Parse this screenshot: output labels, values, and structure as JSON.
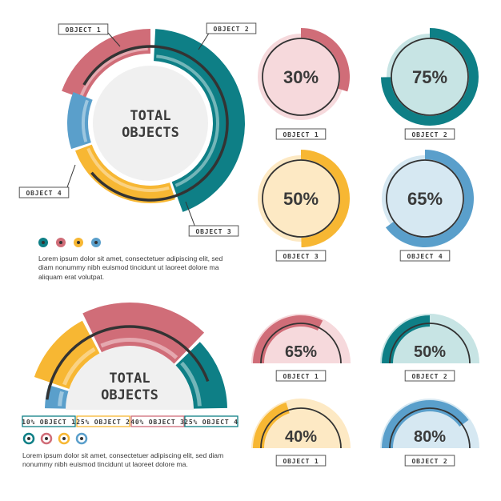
{
  "colors": {
    "teal": "#0e7f86",
    "teal_light": "#c7e4e4",
    "red": "#d06d78",
    "red_light": "#f6d9dc",
    "yellow": "#f7b733",
    "yellow_light": "#fde9c4",
    "blue": "#5a9fcb",
    "blue_light": "#d6e8f2",
    "dark": "#333333",
    "center": "#f0f0f0"
  },
  "paragraph_text": "Lorem ipsum dolor sit amet, consectetuer adipiscing elit, sed diam nonummy nibh euismod tincidunt ut laoreet dolore ma aliquam erat volutpat.",
  "paragraph_text_2": "Lorem ipsum dolor sit amet, consectetuer adipiscing elit, sed diam nonummy nibh euismod tincidunt ut laoreet dolore ma.",
  "chart_data": [
    {
      "type": "pie",
      "center_title": [
        "TOTAL",
        "OBJECTS"
      ],
      "categories": [
        "OBJECT 1",
        "OBJECT 2",
        "OBJECT 3",
        "OBJECT 4"
      ],
      "colors": [
        "red",
        "teal",
        "yellow",
        "blue"
      ],
      "legend_dots": [
        "teal",
        "red",
        "yellow",
        "blue"
      ]
    },
    {
      "type": "pie",
      "label": "OBJECT 1",
      "value": 30,
      "display": "30%",
      "color": "red"
    },
    {
      "type": "pie",
      "label": "OBJECT 2",
      "value": 75,
      "display": "75%",
      "color": "teal"
    },
    {
      "type": "pie",
      "label": "OBJECT 3",
      "value": 50,
      "display": "50%",
      "color": "yellow"
    },
    {
      "type": "pie",
      "label": "OBJECT 4",
      "value": 65,
      "display": "65%",
      "color": "blue"
    },
    {
      "type": "pie",
      "center_title": [
        "TOTAL",
        "OBJECTS"
      ],
      "categories": [
        "OBJECT 1",
        "OBJECT 2",
        "OBJECT 3",
        "OBJECT 4"
      ],
      "values": [
        10,
        25,
        40,
        25
      ],
      "legend": [
        "10% OBJECT 1",
        "25% OBJECT 2",
        "40% OBJECT 3",
        "25% OBJECT 4"
      ],
      "legend_colors": [
        "teal",
        "yellow",
        "red",
        "teal"
      ],
      "legend_dots": [
        "teal",
        "red",
        "yellow",
        "blue"
      ]
    },
    {
      "type": "pie",
      "label": "OBJECT 1",
      "value": 65,
      "display": "65%",
      "color": "red"
    },
    {
      "type": "pie",
      "label": "OBJECT 2",
      "value": 50,
      "display": "50%",
      "color": "teal"
    },
    {
      "type": "pie",
      "label": "OBJECT 1",
      "value": 40,
      "display": "40%",
      "color": "yellow"
    },
    {
      "type": "pie",
      "label": "OBJECT 2",
      "value": 80,
      "display": "80%",
      "color": "blue"
    }
  ]
}
